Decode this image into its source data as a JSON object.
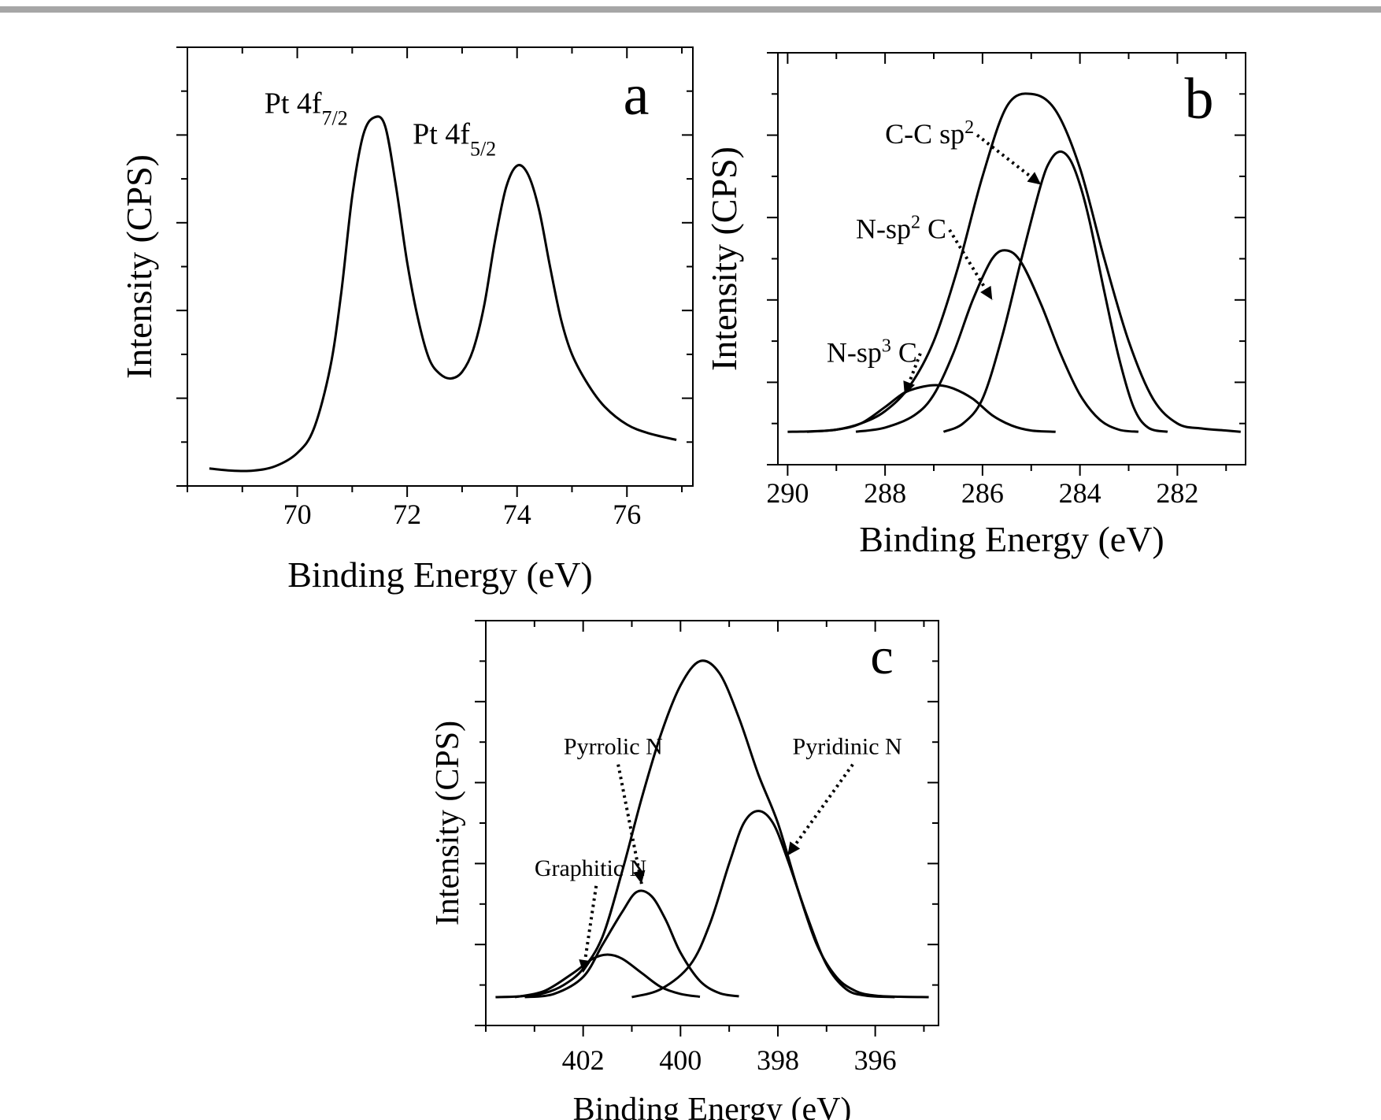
{
  "chart_data": [
    {
      "panel": "a",
      "type": "line",
      "xlabel": "Binding Energy  (eV)",
      "ylabel": "Intensity (CPS)",
      "xlim": [
        68,
        77.2
      ],
      "ylim": [
        0,
        1.0
      ],
      "x_ticks": [
        70,
        72,
        74,
        76
      ],
      "x_reversed": false,
      "y_tick_labels": false,
      "annotations": [
        {
          "main": "Pt 4f",
          "sub": "7/2",
          "x": 69.4,
          "y": 0.85
        },
        {
          "main": "Pt 4f",
          "sub": "5/2",
          "x": 72.1,
          "y": 0.78
        }
      ],
      "series": [
        {
          "x": [
            68.4,
            68.8,
            69.2,
            69.6,
            70.0,
            70.3,
            70.6,
            70.8,
            71.0,
            71.2,
            71.4,
            71.6,
            71.8,
            72.0,
            72.2,
            72.4,
            72.6,
            72.8,
            73.0,
            73.2,
            73.4,
            73.6,
            73.8,
            74.0,
            74.2,
            74.4,
            74.6,
            74.8,
            75.0,
            75.3,
            75.6,
            76.0,
            76.4,
            76.9
          ],
          "y": [
            0.04,
            0.035,
            0.035,
            0.045,
            0.075,
            0.13,
            0.27,
            0.44,
            0.66,
            0.8,
            0.84,
            0.82,
            0.68,
            0.51,
            0.38,
            0.29,
            0.255,
            0.245,
            0.26,
            0.31,
            0.41,
            0.56,
            0.68,
            0.73,
            0.71,
            0.63,
            0.5,
            0.38,
            0.3,
            0.23,
            0.18,
            0.14,
            0.12,
            0.105
          ]
        }
      ]
    },
    {
      "panel": "b",
      "type": "line",
      "xlabel": "Binding Energy (eV)",
      "ylabel": "Intensity (CPS)",
      "xlim": [
        290.2,
        280.6
      ],
      "ylim": [
        0,
        1.0
      ],
      "x_ticks": [
        290,
        288,
        286,
        284,
        282
      ],
      "x_reversed": true,
      "y_tick_labels": false,
      "annotations": [
        {
          "main": "C-C sp",
          "sup": "2",
          "x": 288.0,
          "y": 0.78,
          "arrow_to": [
            284.8,
            0.68
          ]
        },
        {
          "main": "N-sp",
          "sup": "2",
          "tail": " C",
          "x": 288.6,
          "y": 0.55,
          "arrow_to": [
            285.8,
            0.4
          ]
        },
        {
          "main": "N-sp",
          "sup": "3",
          "tail": " C",
          "x": 289.2,
          "y": 0.25,
          "arrow_to": [
            287.6,
            0.17
          ]
        }
      ],
      "series": [
        {
          "name": "envelope",
          "x": [
            290.0,
            289.5,
            289.0,
            288.5,
            288.0,
            287.5,
            287.0,
            286.5,
            286.0,
            285.5,
            285.0,
            284.5,
            284.0,
            283.5,
            283.0,
            282.5,
            282.0,
            281.5,
            281.0,
            280.7
          ],
          "y": [
            0.08,
            0.081,
            0.085,
            0.1,
            0.13,
            0.19,
            0.3,
            0.48,
            0.7,
            0.87,
            0.9,
            0.86,
            0.72,
            0.5,
            0.3,
            0.16,
            0.1,
            0.088,
            0.083,
            0.08
          ]
        },
        {
          "name": "C-C sp2",
          "x": [
            286.8,
            286.4,
            286.0,
            285.6,
            285.2,
            284.8,
            284.6,
            284.4,
            284.2,
            284.0,
            283.8,
            283.5,
            283.2,
            282.9,
            282.6,
            282.2
          ],
          "y": [
            0.08,
            0.1,
            0.16,
            0.31,
            0.5,
            0.68,
            0.74,
            0.76,
            0.74,
            0.68,
            0.59,
            0.42,
            0.26,
            0.14,
            0.09,
            0.08
          ]
        },
        {
          "name": "N-sp2 C",
          "x": [
            288.6,
            288.0,
            287.4,
            287.0,
            286.6,
            286.2,
            285.8,
            285.5,
            285.2,
            284.8,
            284.4,
            284.0,
            283.6,
            283.2,
            282.8
          ],
          "y": [
            0.08,
            0.09,
            0.12,
            0.17,
            0.27,
            0.4,
            0.5,
            0.52,
            0.49,
            0.39,
            0.27,
            0.17,
            0.11,
            0.085,
            0.08
          ]
        },
        {
          "name": "N-sp3 C",
          "x": [
            289.6,
            289.0,
            288.5,
            288.0,
            287.6,
            287.2,
            286.9,
            286.6,
            286.2,
            285.8,
            285.4,
            285.0,
            284.5
          ],
          "y": [
            0.08,
            0.085,
            0.1,
            0.14,
            0.175,
            0.19,
            0.193,
            0.185,
            0.16,
            0.12,
            0.095,
            0.083,
            0.08
          ]
        }
      ]
    },
    {
      "panel": "c",
      "type": "line",
      "xlabel": "Binding Energy (eV)",
      "ylabel": "Intensity (CPS)",
      "xlim": [
        404.0,
        394.7
      ],
      "ylim": [
        0,
        1.0
      ],
      "x_ticks": [
        402,
        400,
        398,
        396
      ],
      "x_reversed": true,
      "y_tick_labels": false,
      "annotations": [
        {
          "main": "Pyrrolic N",
          "x": 402.4,
          "y": 0.67,
          "arrow_to": [
            400.8,
            0.35
          ]
        },
        {
          "main": "Pyridinic N",
          "x": 397.7,
          "y": 0.67,
          "arrow_to": [
            397.8,
            0.42
          ]
        },
        {
          "main": "Graphitic N",
          "x": 403.0,
          "y": 0.37,
          "arrow_to": [
            402.0,
            0.13
          ]
        }
      ],
      "series": [
        {
          "name": "envelope",
          "x": [
            403.8,
            403.3,
            402.8,
            402.4,
            402.0,
            401.6,
            401.2,
            400.8,
            400.4,
            400.0,
            399.6,
            399.2,
            398.8,
            398.4,
            398.0,
            397.6,
            397.2,
            396.8,
            396.4,
            396.0,
            395.5,
            394.9
          ],
          "y": [
            0.07,
            0.072,
            0.08,
            0.1,
            0.14,
            0.22,
            0.38,
            0.56,
            0.72,
            0.84,
            0.9,
            0.87,
            0.76,
            0.62,
            0.5,
            0.34,
            0.2,
            0.12,
            0.085,
            0.074,
            0.071,
            0.07
          ]
        },
        {
          "name": "Pyridinic N",
          "x": [
            401.0,
            400.4,
            399.8,
            399.4,
            399.0,
            398.7,
            398.4,
            398.1,
            397.8,
            397.4,
            397.0,
            396.6,
            396.2,
            395.6
          ],
          "y": [
            0.07,
            0.09,
            0.15,
            0.25,
            0.4,
            0.5,
            0.53,
            0.5,
            0.41,
            0.27,
            0.15,
            0.09,
            0.074,
            0.07
          ]
        },
        {
          "name": "Pyrrolic N",
          "x": [
            403.2,
            402.6,
            402.0,
            401.6,
            401.2,
            400.9,
            400.6,
            400.3,
            400.0,
            399.6,
            399.2,
            398.8
          ],
          "y": [
            0.07,
            0.078,
            0.12,
            0.2,
            0.28,
            0.33,
            0.32,
            0.26,
            0.18,
            0.11,
            0.08,
            0.072
          ]
        },
        {
          "name": "Graphitic N",
          "x": [
            403.4,
            402.8,
            402.2,
            401.8,
            401.5,
            401.2,
            400.8,
            400.4,
            400.0,
            399.6
          ],
          "y": [
            0.07,
            0.085,
            0.13,
            0.165,
            0.175,
            0.165,
            0.13,
            0.095,
            0.078,
            0.071
          ]
        }
      ]
    }
  ],
  "panel_letters": [
    "a",
    "b",
    "c"
  ]
}
